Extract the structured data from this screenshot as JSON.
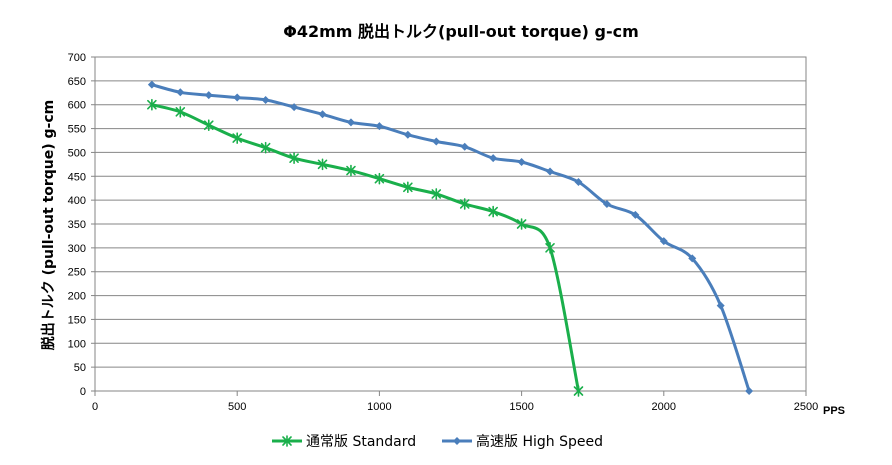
{
  "chart_data": {
    "type": "line",
    "title": "Φ42mm 脱出トルク(pull-out torque) g-cm",
    "ylabel": "脱出トルク (pull-out torque) g-cm",
    "xunit": "PPS",
    "xlim": [
      0,
      2500
    ],
    "ylim": [
      0,
      700
    ],
    "xticks": [
      0,
      500,
      1000,
      1500,
      2000,
      2500
    ],
    "yticks": [
      0,
      50,
      100,
      150,
      200,
      250,
      300,
      350,
      400,
      450,
      500,
      550,
      600,
      650,
      700
    ],
    "grid": true,
    "legend_position": "bottom",
    "series": [
      {
        "name": "通常版 Standard",
        "color": "#1aaf4b",
        "marker": "star",
        "x": [
          200,
          300,
          400,
          500,
          600,
          700,
          800,
          900,
          1000,
          1100,
          1200,
          1300,
          1400,
          1500,
          1600,
          1700
        ],
        "y": [
          600,
          585,
          557,
          530,
          510,
          488,
          475,
          462,
          445,
          427,
          413,
          392,
          376,
          350,
          300,
          0
        ]
      },
      {
        "name": "高速版 High Speed",
        "color": "#4a7ebb",
        "marker": "diamond",
        "x": [
          200,
          300,
          400,
          500,
          600,
          700,
          800,
          900,
          1000,
          1100,
          1200,
          1300,
          1400,
          1500,
          1600,
          1700,
          1800,
          1900,
          2000,
          2100,
          2200,
          2300
        ],
        "y": [
          642,
          626,
          620,
          615,
          610,
          595,
          580,
          563,
          555,
          537,
          523,
          512,
          488,
          480,
          460,
          438,
          392,
          369,
          314,
          278,
          179,
          0
        ]
      }
    ]
  }
}
